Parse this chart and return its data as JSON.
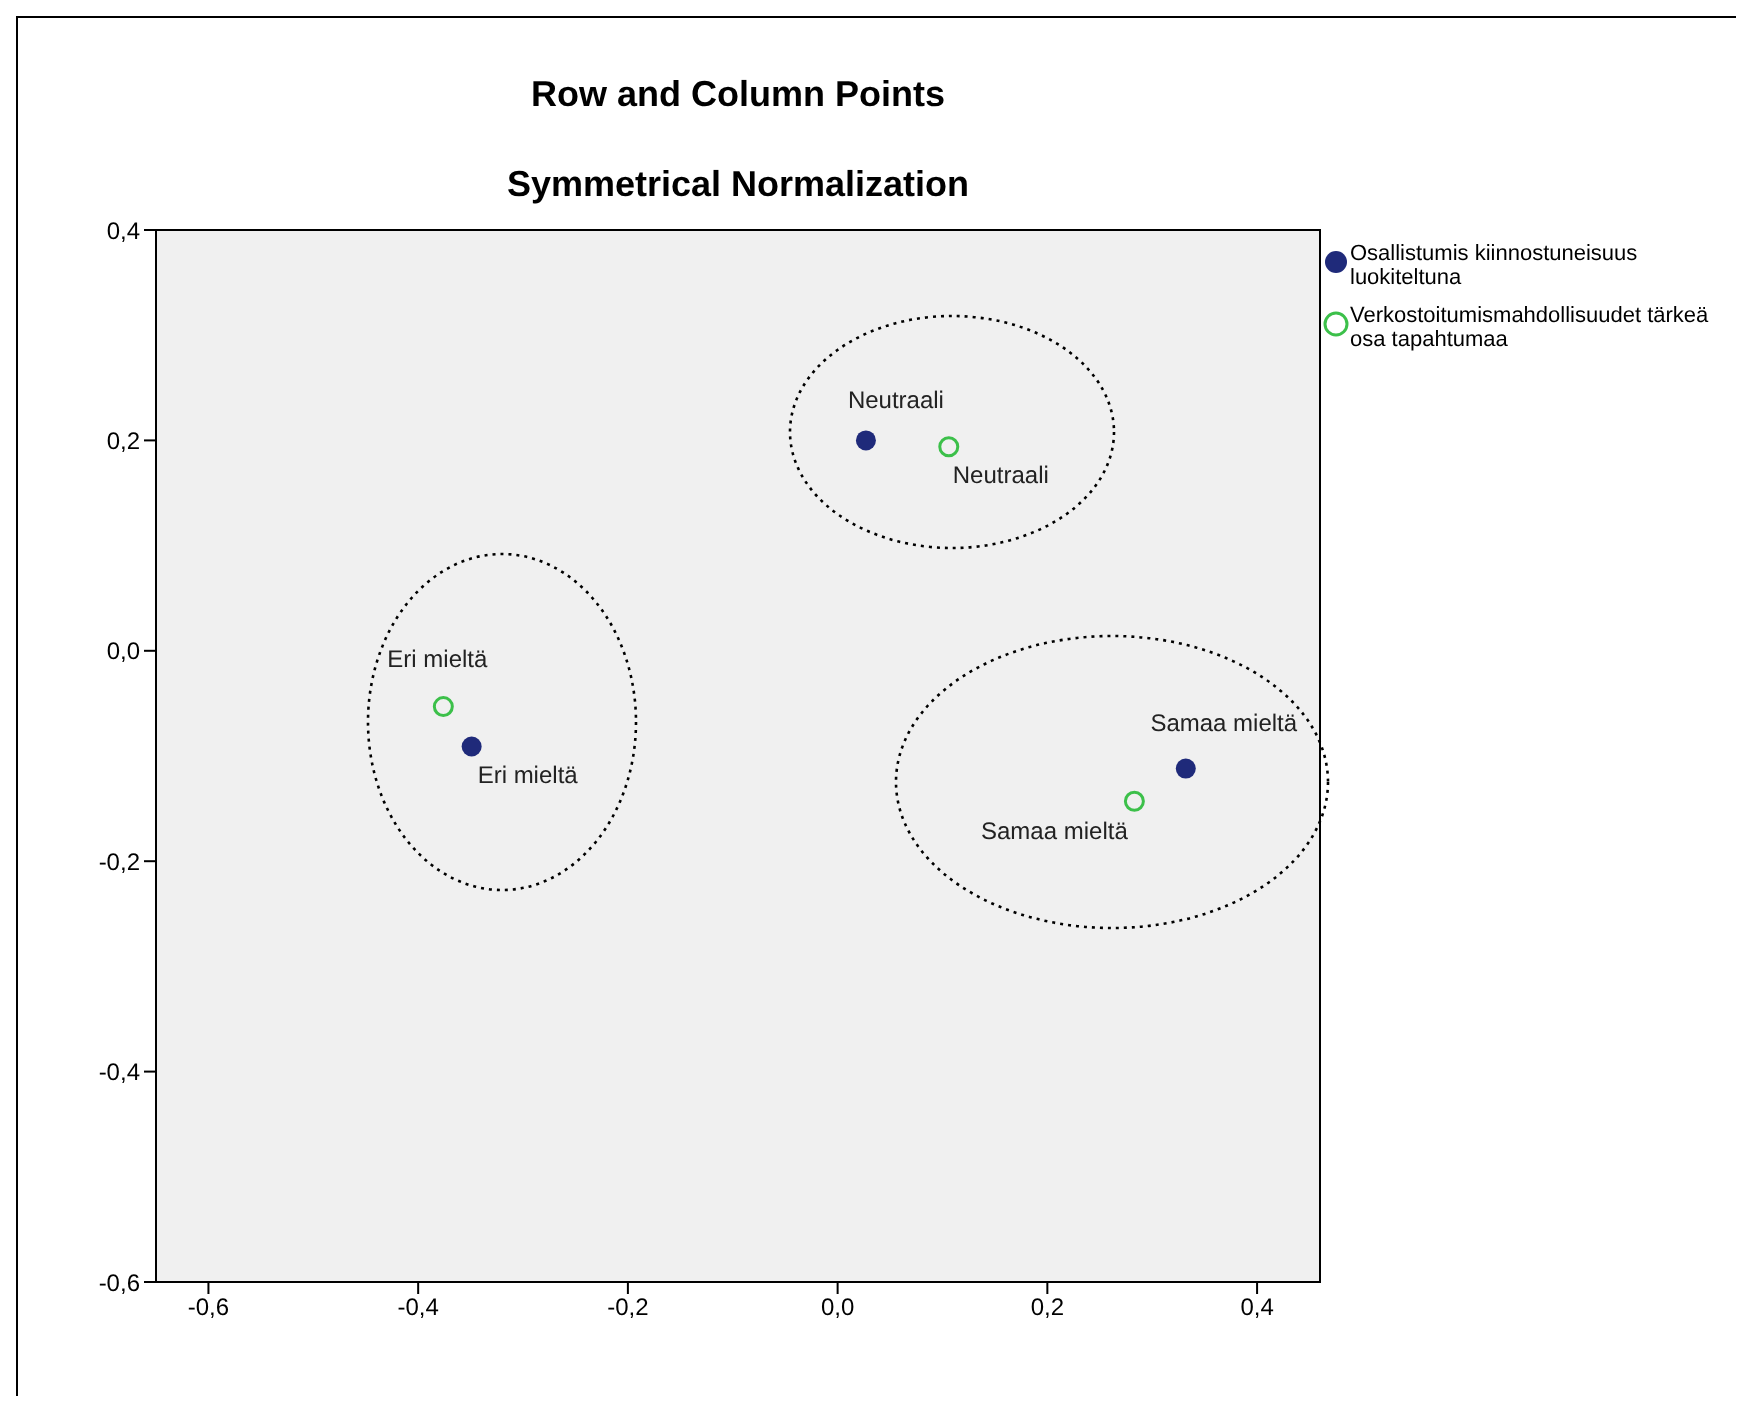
{
  "chart_data": {
    "type": "scatter",
    "title": "Row and Column Points",
    "subtitle": "Symmetrical Normalization",
    "series": [
      {
        "name": "Osallistumis kiinnostuneisuus luokiteltuna",
        "color": "#1f2a7a",
        "x": [
          0.027,
          -0.349,
          0.332
        ],
        "values": [
          0.2,
          -0.091,
          -0.112
        ]
      },
      {
        "name": "Verkostoitumismahdollisuudet tärkeä osa tapahtumaa",
        "color": "#3cc04a",
        "x": [
          0.106,
          -0.376,
          0.283
        ],
        "values": [
          0.194,
          -0.053,
          -0.143
        ]
      }
    ],
    "annotations": [
      {
        "text": "Neutraali",
        "x": 0.027,
        "y": 0.2
      },
      {
        "text": "Eri mieltä",
        "x": -0.349,
        "y": -0.091
      },
      {
        "text": "Samaa mieltä",
        "x": 0.332,
        "y": -0.112
      },
      {
        "text": "Neutraali",
        "x": 0.106,
        "y": 0.194
      },
      {
        "text": "Eri mieltä",
        "x": -0.376,
        "y": -0.053
      },
      {
        "text": "Samaa mieltä",
        "x": 0.283,
        "y": -0.143
      }
    ],
    "xlim": [
      -0.65,
      0.46
    ],
    "ylim": [
      -0.6,
      0.4
    ],
    "xticks": [
      {
        "value": -0.6,
        "label": "-0,6"
      },
      {
        "value": -0.4,
        "label": "-0,4"
      },
      {
        "value": -0.2,
        "label": "-0,2"
      },
      {
        "value": 0,
        "label": "0,0"
      },
      {
        "value": 0.2,
        "label": "0,2"
      },
      {
        "value": 0.4,
        "label": "0,4"
      }
    ],
    "yticks": [
      {
        "value": -0.6,
        "label": "-0,6"
      },
      {
        "value": -0.4,
        "label": "-0,4"
      },
      {
        "value": -0.2,
        "label": "-0,2"
      },
      {
        "value": 0,
        "label": "0,0"
      },
      {
        "value": 0.2,
        "label": "0,2"
      },
      {
        "value": 0.4,
        "label": "0,4"
      }
    ],
    "legend": "top right",
    "marker": "circle"
  }
}
